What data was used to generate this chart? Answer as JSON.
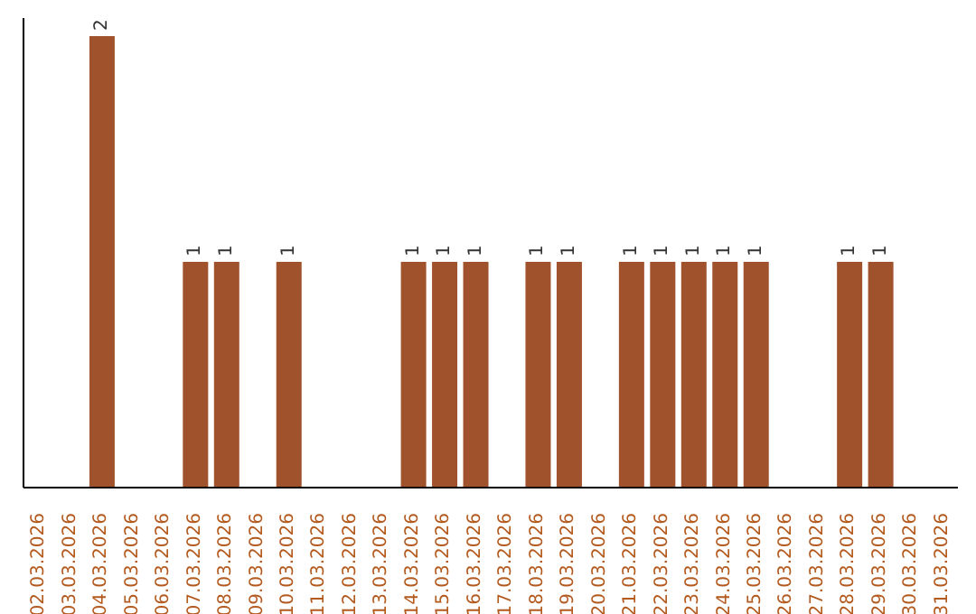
{
  "chart_data": {
    "type": "bar",
    "categories": [
      "02.03.2026",
      "03.03.2026",
      "04.03.2026",
      "05.03.2026",
      "06.03.2026",
      "07.03.2026",
      "08.03.2026",
      "09.03.2026",
      "10.03.2026",
      "11.03.2026",
      "12.03.2026",
      "13.03.2026",
      "14.03.2026",
      "15.03.2026",
      "16.03.2026",
      "17.03.2026",
      "18.03.2026",
      "19.03.2026",
      "20.03.2026",
      "21.03.2026",
      "22.03.2026",
      "23.03.2026",
      "24.03.2026",
      "25.03.2026",
      "26.03.2026",
      "27.03.2026",
      "28.03.2026",
      "29.03.2026",
      "30.03.2026",
      "31.03.2026"
    ],
    "values": [
      0,
      0,
      2,
      0,
      0,
      1,
      1,
      0,
      1,
      0,
      0,
      0,
      1,
      1,
      1,
      0,
      1,
      1,
      0,
      1,
      1,
      1,
      1,
      1,
      0,
      0,
      1,
      1,
      0,
      0
    ],
    "value_labels": [
      null,
      null,
      "2",
      null,
      null,
      "1",
      "1",
      null,
      "1",
      null,
      null,
      null,
      "1",
      "1",
      "1",
      null,
      "1",
      "1",
      null,
      "1",
      "1",
      "1",
      "1",
      "1",
      null,
      null,
      "1",
      "1",
      null,
      null
    ],
    "color": "#a0522d",
    "grid": false,
    "legend": false
  }
}
